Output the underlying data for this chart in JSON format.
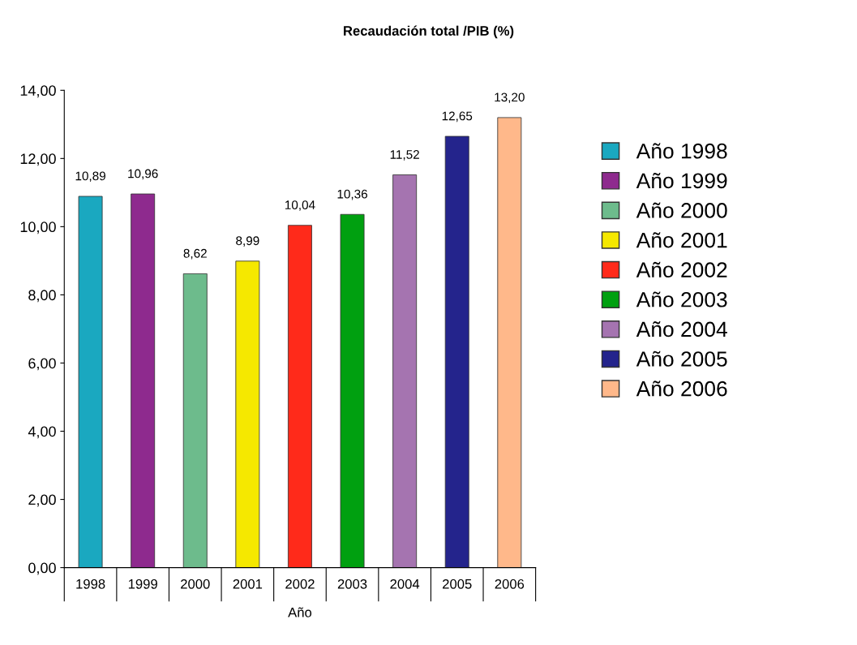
{
  "chart_data": {
    "type": "bar",
    "title": "Recaudación total /PIB (%)",
    "xlabel": "Año",
    "categories": [
      "1998",
      "1999",
      "2000",
      "2001",
      "2002",
      "2003",
      "2004",
      "2005",
      "2006"
    ],
    "series": [
      {
        "name": "Año 1998",
        "color": "#1aa8c0",
        "values": [
          10.89,
          null,
          null,
          null,
          null,
          null,
          null,
          null,
          null
        ],
        "value_labels": [
          "10,89",
          null,
          null,
          null,
          null,
          null,
          null,
          null,
          null
        ]
      },
      {
        "name": "Año 1999",
        "color": "#8e2a8e",
        "values": [
          null,
          10.96,
          null,
          null,
          null,
          null,
          null,
          null,
          null
        ],
        "value_labels": [
          null,
          "10,96",
          null,
          null,
          null,
          null,
          null,
          null,
          null
        ]
      },
      {
        "name": "Año 2000",
        "color": "#6dbb8c",
        "values": [
          null,
          null,
          8.62,
          null,
          null,
          null,
          null,
          null,
          null
        ],
        "value_labels": [
          null,
          null,
          "8,62",
          null,
          null,
          null,
          null,
          null,
          null
        ]
      },
      {
        "name": "Año 2001",
        "color": "#f5e800",
        "values": [
          null,
          null,
          null,
          8.99,
          null,
          null,
          null,
          null,
          null
        ],
        "value_labels": [
          null,
          null,
          null,
          "8,99",
          null,
          null,
          null,
          null,
          null
        ]
      },
      {
        "name": "Año 2002",
        "color": "#ff2a1a",
        "values": [
          null,
          null,
          null,
          null,
          10.04,
          null,
          null,
          null,
          null
        ],
        "value_labels": [
          null,
          null,
          null,
          null,
          "10,04",
          null,
          null,
          null,
          null
        ]
      },
      {
        "name": "Año 2003",
        "color": "#00a010",
        "values": [
          null,
          null,
          null,
          null,
          null,
          10.36,
          null,
          null,
          null
        ],
        "value_labels": [
          null,
          null,
          null,
          null,
          null,
          "10,36",
          null,
          null,
          null
        ]
      },
      {
        "name": "Año 2004",
        "color": "#a574b0",
        "values": [
          null,
          null,
          null,
          null,
          null,
          null,
          11.52,
          null,
          null
        ],
        "value_labels": [
          null,
          null,
          null,
          null,
          null,
          null,
          "11,52",
          null,
          null
        ]
      },
      {
        "name": "Año 2005",
        "color": "#24248c",
        "values": [
          null,
          null,
          null,
          null,
          null,
          null,
          null,
          12.65,
          null
        ],
        "value_labels": [
          null,
          null,
          null,
          null,
          null,
          null,
          null,
          "12,65",
          null
        ]
      },
      {
        "name": "Año 2006",
        "color": "#ffb88a",
        "values": [
          null,
          null,
          null,
          null,
          null,
          null,
          null,
          null,
          13.2
        ],
        "value_labels": [
          null,
          null,
          null,
          null,
          null,
          null,
          null,
          null,
          "13,20"
        ]
      }
    ],
    "ylim": [
      0,
      14
    ],
    "yticks": [
      {
        "value": 0,
        "label": "0,00"
      },
      {
        "value": 2,
        "label": "2,00"
      },
      {
        "value": 4,
        "label": "4,00"
      },
      {
        "value": 6,
        "label": "6,00"
      },
      {
        "value": 8,
        "label": "8,00"
      },
      {
        "value": 10,
        "label": "10,00"
      },
      {
        "value": 12,
        "label": "12,00"
      },
      {
        "value": 14,
        "label": "14,00"
      }
    ],
    "grid": false,
    "legend": "right"
  }
}
